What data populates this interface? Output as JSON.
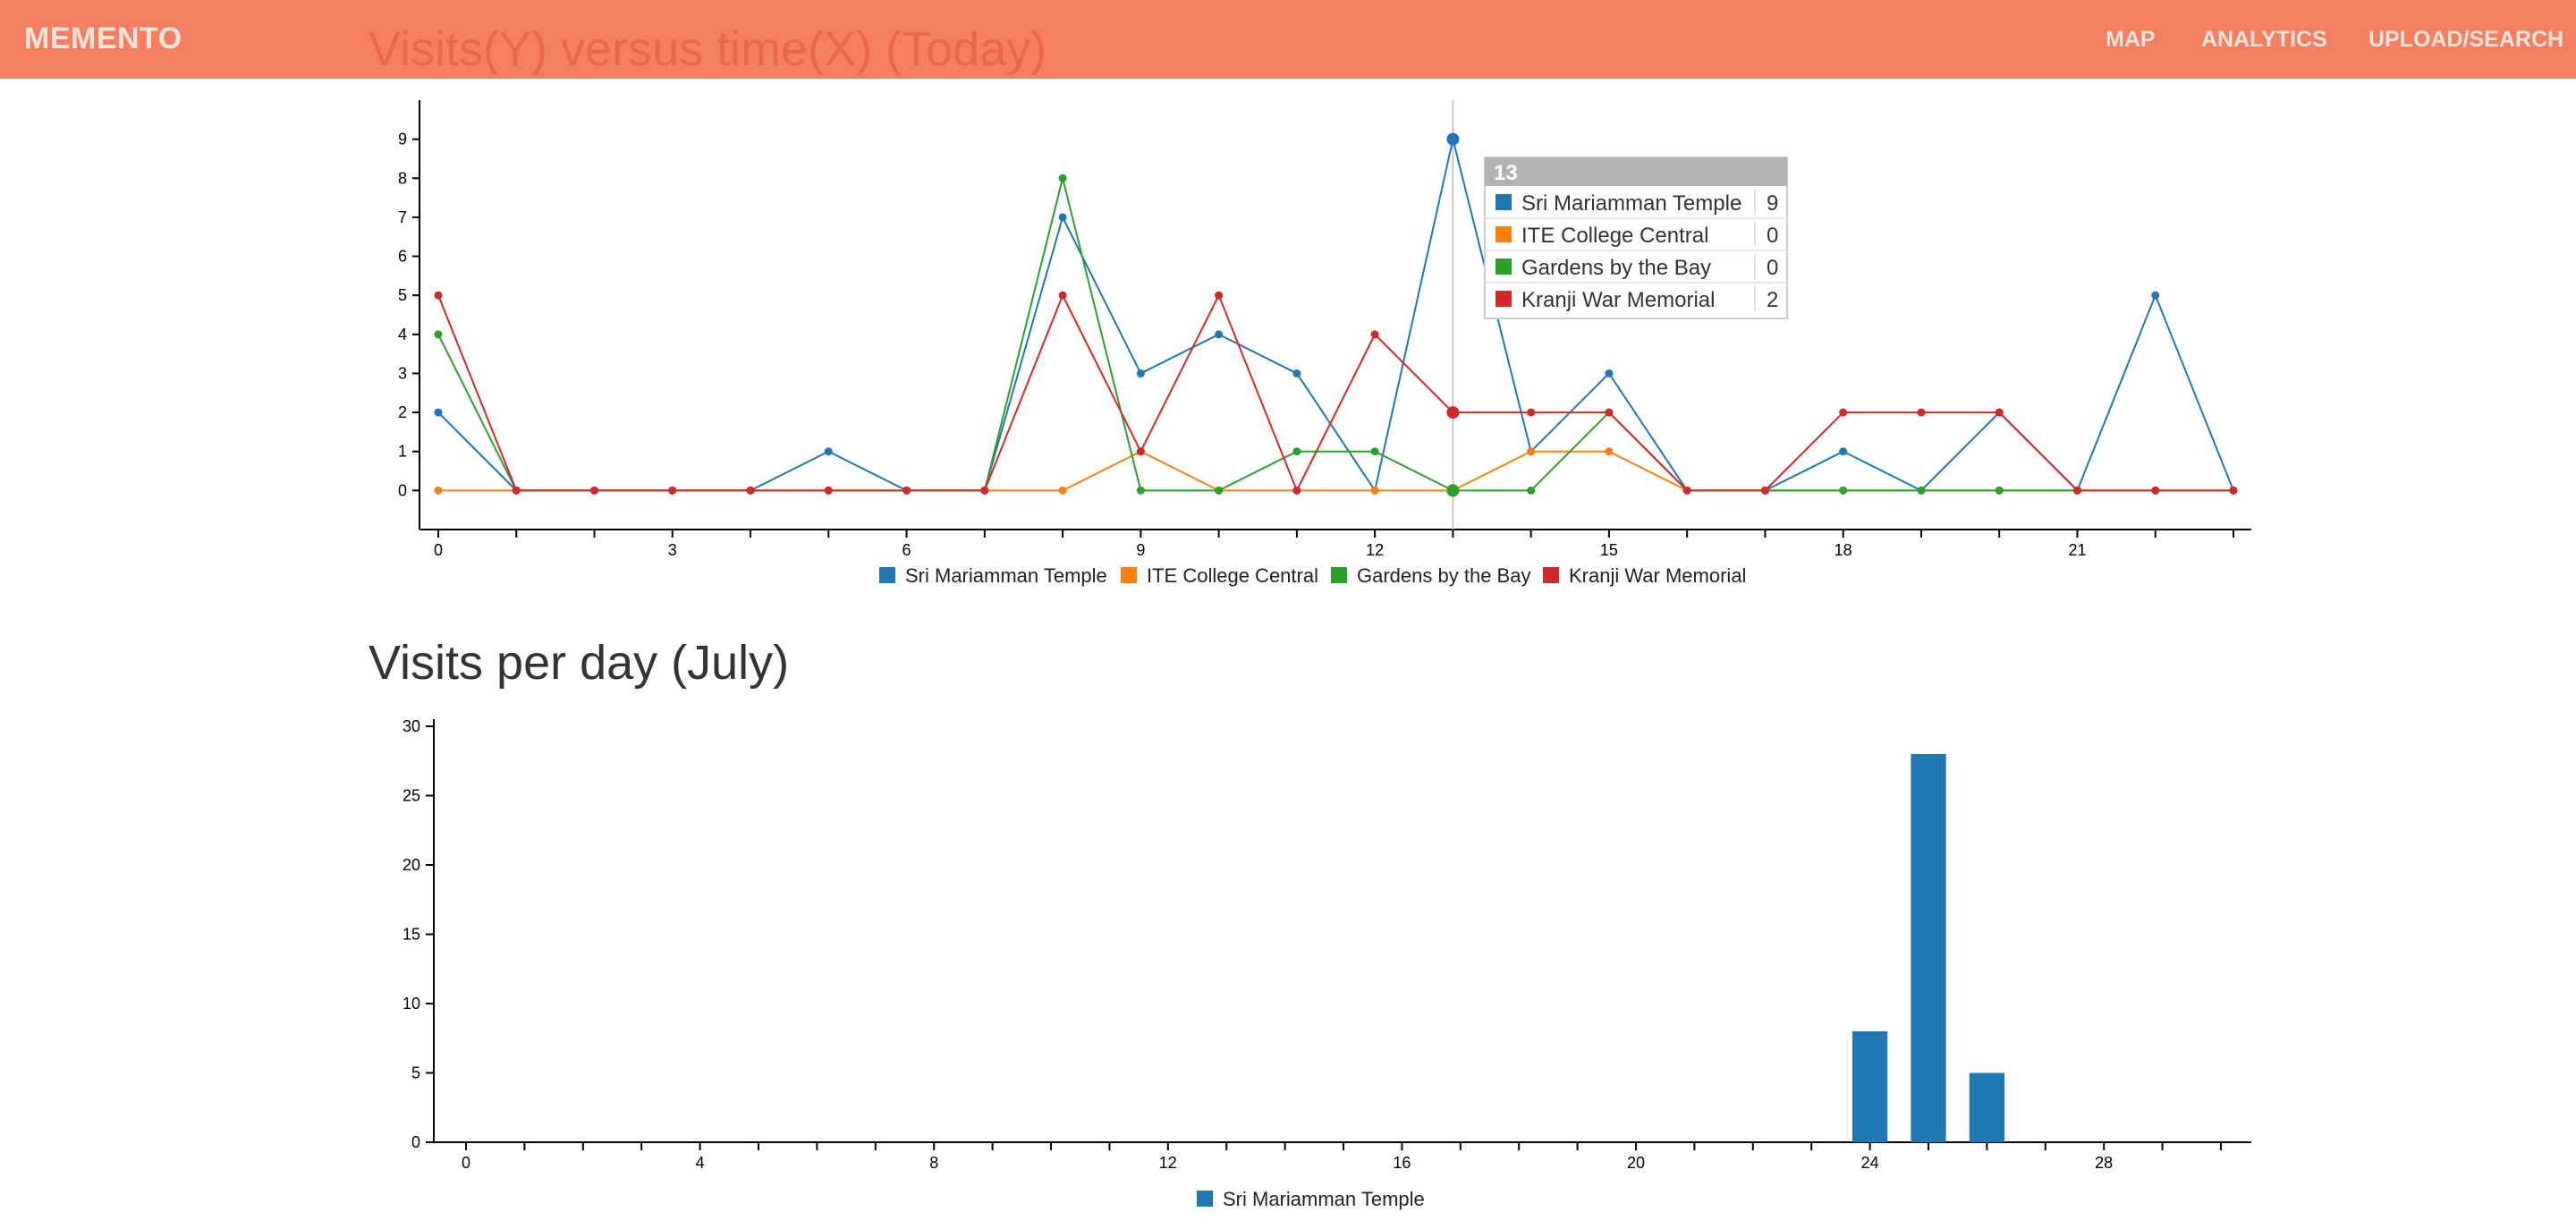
{
  "nav": {
    "brand": "MEMENTO",
    "links": [
      "MAP",
      "ANALYTICS",
      "UPLOAD/SEARCH"
    ]
  },
  "colors": {
    "navbar": "#f47f60",
    "Sri Mariamman Temple": "#1f77b4",
    "ITE College Central": "#ff7f0e",
    "Gardens by the Bay": "#2ca02c",
    "Kranji War Memorial": "#d62728"
  },
  "chart_data": [
    {
      "type": "line",
      "title": "Visits(Y) versus time(X) (Today)",
      "xlabel": "",
      "ylabel": "",
      "xlim": [
        0,
        23
      ],
      "ylim": [
        -1,
        10
      ],
      "x_ticks": [
        0,
        3,
        6,
        9,
        12,
        15,
        18,
        21
      ],
      "y_ticks": [
        0,
        1,
        2,
        3,
        4,
        5,
        6,
        7,
        8,
        9
      ],
      "x": [
        0,
        1,
        2,
        3,
        4,
        5,
        6,
        7,
        8,
        9,
        10,
        11,
        12,
        13,
        14,
        15,
        16,
        17,
        18,
        19,
        20,
        21,
        22,
        23
      ],
      "series": [
        {
          "name": "Sri Mariamman Temple",
          "values": [
            2,
            0,
            0,
            0,
            0,
            1,
            0,
            0,
            7,
            3,
            4,
            3,
            0,
            9,
            1,
            3,
            0,
            0,
            1,
            0,
            2,
            0,
            5,
            0
          ]
        },
        {
          "name": "ITE College Central",
          "values": [
            0,
            0,
            0,
            0,
            0,
            0,
            0,
            0,
            0,
            1,
            0,
            0,
            0,
            0,
            1,
            1,
            0,
            0,
            0,
            0,
            0,
            0,
            0,
            0
          ]
        },
        {
          "name": "Gardens by the Bay",
          "values": [
            4,
            0,
            0,
            0,
            0,
            0,
            0,
            0,
            8,
            0,
            0,
            1,
            1,
            0,
            0,
            2,
            0,
            0,
            0,
            0,
            0,
            0,
            0,
            0
          ]
        },
        {
          "name": "Kranji War Memorial",
          "values": [
            5,
            0,
            0,
            0,
            0,
            0,
            0,
            0,
            5,
            1,
            5,
            0,
            4,
            2,
            2,
            2,
            0,
            0,
            2,
            2,
            2,
            0,
            0,
            0
          ]
        }
      ],
      "legend": "bottom",
      "tooltip": {
        "x": 13,
        "header": "13",
        "rows": [
          {
            "name": "Sri Mariamman Temple",
            "value": "9"
          },
          {
            "name": "ITE College Central",
            "value": "0"
          },
          {
            "name": "Gardens by the Bay",
            "value": "0"
          },
          {
            "name": "Kranji War Memorial",
            "value": "2"
          }
        ]
      }
    },
    {
      "type": "bar",
      "title": "Visits per day (July)",
      "xlabel": "",
      "ylabel": "",
      "xlim": [
        -0.5,
        30.5
      ],
      "ylim": [
        0,
        30
      ],
      "x_ticks": [
        0,
        4,
        8,
        12,
        16,
        20,
        24,
        28
      ],
      "y_ticks": [
        0,
        5,
        10,
        15,
        20,
        25,
        30
      ],
      "series": [
        {
          "name": "Sri Mariamman Temple",
          "points": [
            [
              24,
              8
            ],
            [
              25,
              28
            ],
            [
              26,
              5
            ]
          ]
        }
      ],
      "legend": "bottom"
    }
  ]
}
